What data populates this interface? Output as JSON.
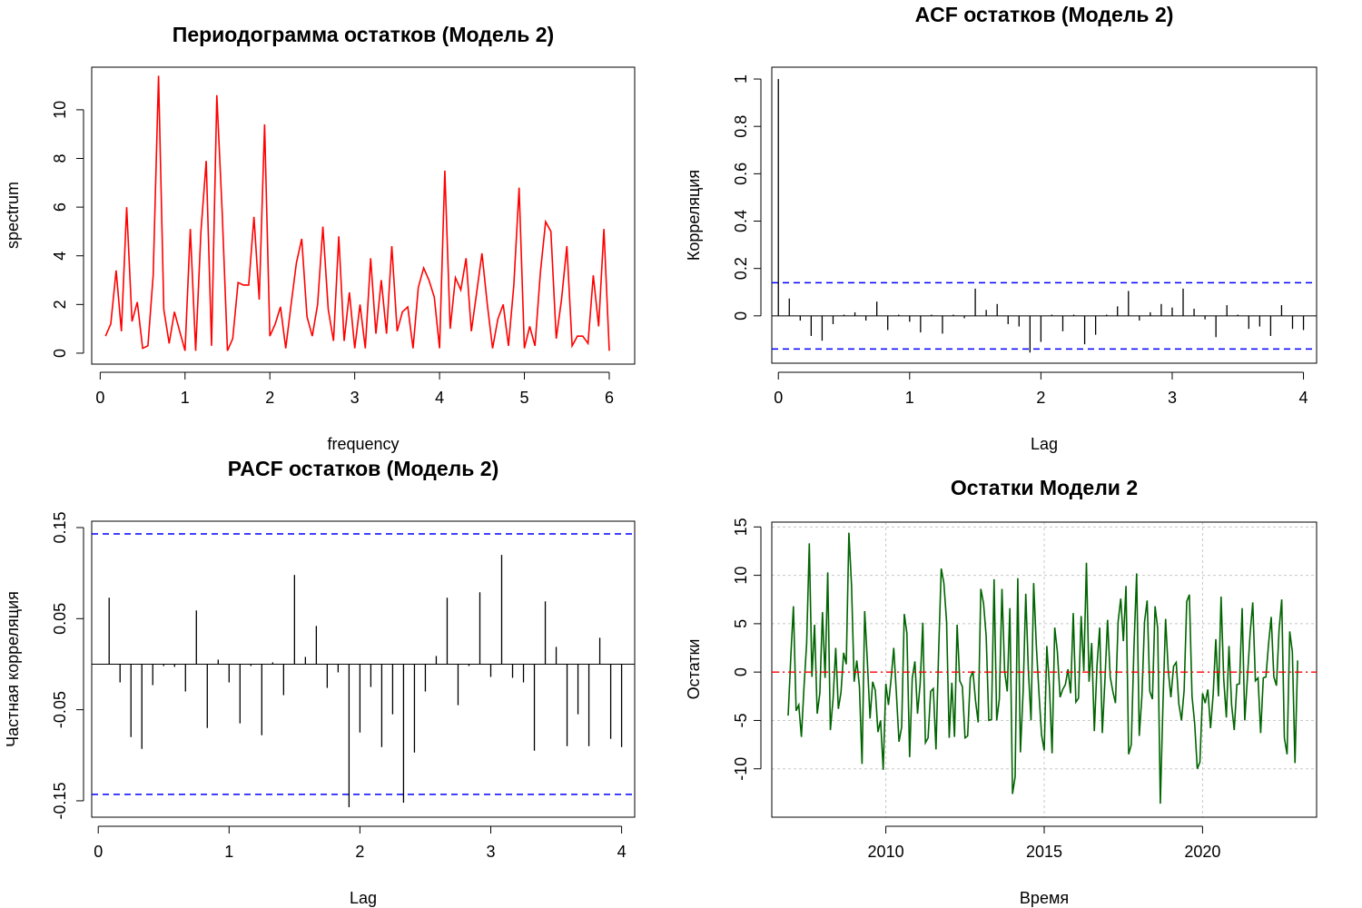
{
  "chart_data": [
    {
      "id": "periodogram",
      "type": "line",
      "title": "Периодограмма остатков (Модель 2)",
      "xlabel": "frequency",
      "ylabel": "spectrum",
      "xlim": [
        0,
        6
      ],
      "ylim": [
        0,
        11.4
      ],
      "xticks": [
        0,
        1,
        2,
        3,
        4,
        5,
        6
      ],
      "yticks": [
        0,
        2,
        4,
        6,
        8,
        10
      ],
      "grid": false,
      "line_color": "#ff0000",
      "series": [
        {
          "x": [
            0.0625,
            0.125,
            0.1875,
            0.25,
            0.3125,
            0.375,
            0.4375,
            0.5,
            0.5625,
            0.625,
            0.6875,
            0.75,
            0.8125,
            0.875,
            0.9375,
            1.0,
            1.0625,
            1.125,
            1.1875,
            1.25,
            1.3125,
            1.375,
            1.4375,
            1.5,
            1.5625,
            1.625,
            1.6875,
            1.75,
            1.8125,
            1.875,
            1.9375,
            2.0,
            2.0625,
            2.125,
            2.1875,
            2.25,
            2.3125,
            2.375,
            2.4375,
            2.5,
            2.5625,
            2.625,
            2.6875,
            2.75,
            2.8125,
            2.875,
            2.9375,
            3.0,
            3.0625,
            3.125,
            3.1875,
            3.25,
            3.3125,
            3.375,
            3.4375,
            3.5,
            3.5625,
            3.625,
            3.6875,
            3.75,
            3.8125,
            3.875,
            3.9375,
            4.0,
            4.0625,
            4.125,
            4.1875,
            4.25,
            4.3125,
            4.375,
            4.4375,
            4.5,
            4.5625,
            4.625,
            4.6875,
            4.75,
            4.8125,
            4.875,
            4.9375,
            5.0,
            5.0625,
            5.125,
            5.1875,
            5.25,
            5.3125,
            5.375,
            5.4375,
            5.5,
            5.5625,
            5.625,
            5.6875,
            5.75,
            5.8125,
            5.875,
            5.9375,
            6.0
          ],
          "y": [
            0.7,
            1.2,
            3.4,
            0.9,
            6.0,
            1.3,
            2.1,
            0.2,
            0.3,
            3.2,
            11.4,
            1.8,
            0.4,
            1.7,
            0.9,
            0.1,
            5.1,
            0.1,
            5.0,
            7.9,
            0.3,
            10.6,
            5.8,
            0.1,
            0.6,
            2.9,
            2.8,
            2.8,
            5.6,
            2.2,
            9.4,
            0.7,
            1.2,
            1.9,
            0.2,
            2.0,
            3.7,
            4.7,
            1.5,
            0.7,
            2.0,
            5.2,
            1.8,
            0.5,
            4.8,
            0.5,
            2.5,
            0.2,
            2.0,
            0.2,
            3.9,
            0.8,
            3.0,
            0.8,
            4.4,
            0.9,
            1.7,
            1.9,
            0.2,
            2.7,
            3.5,
            3.0,
            2.3,
            0.2,
            7.5,
            1.0,
            3.1,
            2.6,
            3.9,
            0.9,
            2.5,
            4.1,
            2.0,
            0.2,
            1.4,
            2.0,
            0.3,
            2.8,
            6.8,
            0.2,
            1.1,
            0.3,
            3.3,
            5.4,
            5.0,
            0.6,
            2.2,
            4.4,
            0.3,
            0.7,
            0.7,
            0.4,
            3.2,
            1.1,
            5.1,
            0.1
          ]
        }
      ]
    },
    {
      "id": "acf",
      "type": "bar",
      "title": "ACF остатков (Модель 2)",
      "xlabel": "Lag",
      "ylabel": "Корреляция",
      "xlim": [
        -0.05,
        4.1
      ],
      "ylim": [
        -0.2,
        1.05
      ],
      "xticks": [
        0,
        1,
        2,
        3,
        4
      ],
      "yticks": [
        0.0,
        0.2,
        0.4,
        0.6,
        0.8,
        1.0
      ],
      "grid": false,
      "conf_limits": [
        0.14,
        -0.14
      ],
      "conf_color": "#0000ff",
      "x": [
        0.0,
        0.0833,
        0.1667,
        0.25,
        0.3333,
        0.4167,
        0.5,
        0.5833,
        0.6667,
        0.75,
        0.8333,
        0.9167,
        1.0,
        1.0833,
        1.1667,
        1.25,
        1.3333,
        1.4167,
        1.5,
        1.5833,
        1.6667,
        1.75,
        1.8333,
        1.9167,
        2.0,
        2.0833,
        2.1667,
        2.25,
        2.3333,
        2.4167,
        2.5,
        2.5833,
        2.6667,
        2.75,
        2.8333,
        2.9167,
        3.0,
        3.0833,
        3.1667,
        3.25,
        3.3333,
        3.4167,
        3.5,
        3.5833,
        3.6667,
        3.75,
        3.8333,
        3.9167,
        4.0
      ],
      "values": [
        1.0,
        0.073,
        -0.02,
        -0.085,
        -0.105,
        -0.035,
        0.005,
        0.015,
        -0.02,
        0.06,
        -0.06,
        0.005,
        -0.025,
        -0.07,
        0.005,
        -0.075,
        0.005,
        -0.01,
        0.115,
        0.025,
        0.05,
        -0.035,
        -0.045,
        -0.155,
        -0.11,
        0.005,
        -0.065,
        0.005,
        -0.12,
        -0.08,
        0.005,
        0.04,
        0.105,
        -0.02,
        0.015,
        0.05,
        0.035,
        0.115,
        0.03,
        -0.015,
        -0.09,
        0.045,
        0.005,
        -0.055,
        -0.045,
        -0.085,
        0.045,
        -0.055,
        -0.06
      ]
    },
    {
      "id": "pacf",
      "type": "bar",
      "title": "PACF остатков (Модель 2)",
      "xlabel": "Lag",
      "ylabel": "Частная корреляция",
      "xlim": [
        -0.05,
        4.1
      ],
      "ylim": [
        -0.168,
        0.157
      ],
      "xticks": [
        0,
        1,
        2,
        3,
        4
      ],
      "yticks": [
        -0.15,
        -0.05,
        0.05,
        0.15
      ],
      "ytick_labels": [
        "-0.15",
        "-0.05",
        "0.05",
        "0.15"
      ],
      "grid": false,
      "conf_limits": [
        0.143,
        -0.143
      ],
      "conf_color": "#0000ff",
      "x": [
        0.0833,
        0.1667,
        0.25,
        0.3333,
        0.4167,
        0.5,
        0.5833,
        0.6667,
        0.75,
        0.8333,
        0.9167,
        1.0,
        1.0833,
        1.1667,
        1.25,
        1.3333,
        1.4167,
        1.5,
        1.5833,
        1.6667,
        1.75,
        1.8333,
        1.9167,
        2.0,
        2.0833,
        2.1667,
        2.25,
        2.3333,
        2.4167,
        2.5,
        2.5833,
        2.6667,
        2.75,
        2.8333,
        2.9167,
        3.0,
        3.0833,
        3.1667,
        3.25,
        3.3333,
        3.4167,
        3.5,
        3.5833,
        3.6667,
        3.75,
        3.8333,
        3.9167,
        4.0
      ],
      "values": [
        0.073,
        -0.02,
        -0.08,
        -0.093,
        -0.023,
        -0.002,
        -0.003,
        -0.03,
        0.059,
        -0.07,
        0.005,
        -0.02,
        -0.065,
        -0.002,
        -0.078,
        0.002,
        -0.034,
        0.098,
        0.008,
        0.042,
        -0.026,
        -0.009,
        -0.157,
        -0.075,
        -0.025,
        -0.091,
        -0.055,
        -0.152,
        -0.097,
        -0.03,
        0.009,
        0.073,
        -0.045,
        -0.002,
        0.079,
        -0.014,
        0.12,
        -0.015,
        -0.02,
        -0.095,
        0.069,
        0.019,
        -0.09,
        -0.055,
        -0.09,
        0.029,
        -0.082,
        -0.091
      ]
    },
    {
      "id": "residuals",
      "type": "line",
      "title": "Остатки Модели 2",
      "xlabel": "Время",
      "ylabel": "Остатки",
      "xlim": [
        2006.4,
        2023.6
      ],
      "ylim": [
        -15,
        15.5
      ],
      "xticks": [
        2010,
        2015,
        2020
      ],
      "yticks": [
        -10,
        -5,
        0,
        5,
        10,
        15
      ],
      "grid": true,
      "zero_line_color": "#ff0000",
      "line_color": "#006400",
      "x_start": 2006.917,
      "x_step": 0.0833333,
      "series": [
        {
          "values": [
            -4.5,
            1.5,
            6.8,
            -4,
            -3.4,
            -6.7,
            -1.5,
            3,
            13.3,
            -0.5,
            4.9,
            -4.3,
            -2.2,
            6.2,
            -0.6,
            10.3,
            -6,
            -2.8,
            2.5,
            -3.8,
            -2.1,
            2,
            0.8,
            14.4,
            9,
            -1,
            1.2,
            -1.5,
            -9.5,
            6.3,
            1.2,
            -4.8,
            -1,
            -1.9,
            -6.2,
            -5,
            -10.1,
            -1.2,
            -3.4,
            -0.7,
            2.5,
            -2.2,
            -7.2,
            -5.7,
            6,
            4,
            -8.8,
            -0.6,
            1.1,
            -4.3,
            -1.2,
            5.1,
            -7.3,
            -6.8,
            -2,
            -1.7,
            -8,
            2,
            10.7,
            9.2,
            5.2,
            -6.8,
            -1.1,
            -6.7,
            4.9,
            -0.9,
            -1.5,
            -6.8,
            -6.6,
            -0.6,
            0.1,
            -3,
            -5.2,
            8.6,
            7.1,
            3.7,
            -5,
            -4.9,
            9.6,
            -5,
            -2.8,
            8.6,
            0.1,
            -2,
            6.6,
            -12.6,
            -10.8,
            9.7,
            -8.3,
            -2,
            8.1,
            0.1,
            -5,
            9.2,
            2.8,
            -2.1,
            -6.5,
            -8.1,
            2.7,
            -1.5,
            -8.4,
            4.6,
            2.1,
            -2.6,
            -1.8,
            -1.3,
            0.3,
            -2.2,
            6.1,
            -3.1,
            -2.7,
            5.8,
            0.1,
            11.3,
            -1,
            3,
            -6.1,
            0.7,
            4.6,
            -6.3,
            -0.8,
            5.4,
            -0.5,
            -2,
            -3.2,
            5.2,
            7.6,
            3.2,
            8.9,
            -8.5,
            -7.5,
            2.4,
            10.2,
            -6.6,
            -2.5,
            5.2,
            7.4,
            -2,
            -2.8,
            6.8,
            4.5,
            -13.6,
            -3.3,
            5.5,
            0.2,
            -2.6,
            0.6,
            1,
            -3.3,
            -5,
            -1.9,
            7.3,
            8,
            -2.5,
            -5.3,
            -10,
            -9.3,
            -2.2,
            -3.2,
            -1.8,
            -5.8,
            -2.3,
            3.4,
            -2.5,
            7.8,
            -0.7,
            -4.7,
            2.7,
            -3.4,
            -6,
            -1.3,
            -1.2,
            6.6,
            -5,
            -0.6,
            4,
            7.2,
            -0.9,
            -0.6,
            -6.3,
            -0.6,
            -0.5,
            2.9,
            5.7,
            -0.5,
            -1.4,
            4.4,
            7.5,
            -6.8,
            -8.5,
            4.2,
            2.1,
            -9.4,
            1.2
          ]
        }
      ]
    }
  ]
}
